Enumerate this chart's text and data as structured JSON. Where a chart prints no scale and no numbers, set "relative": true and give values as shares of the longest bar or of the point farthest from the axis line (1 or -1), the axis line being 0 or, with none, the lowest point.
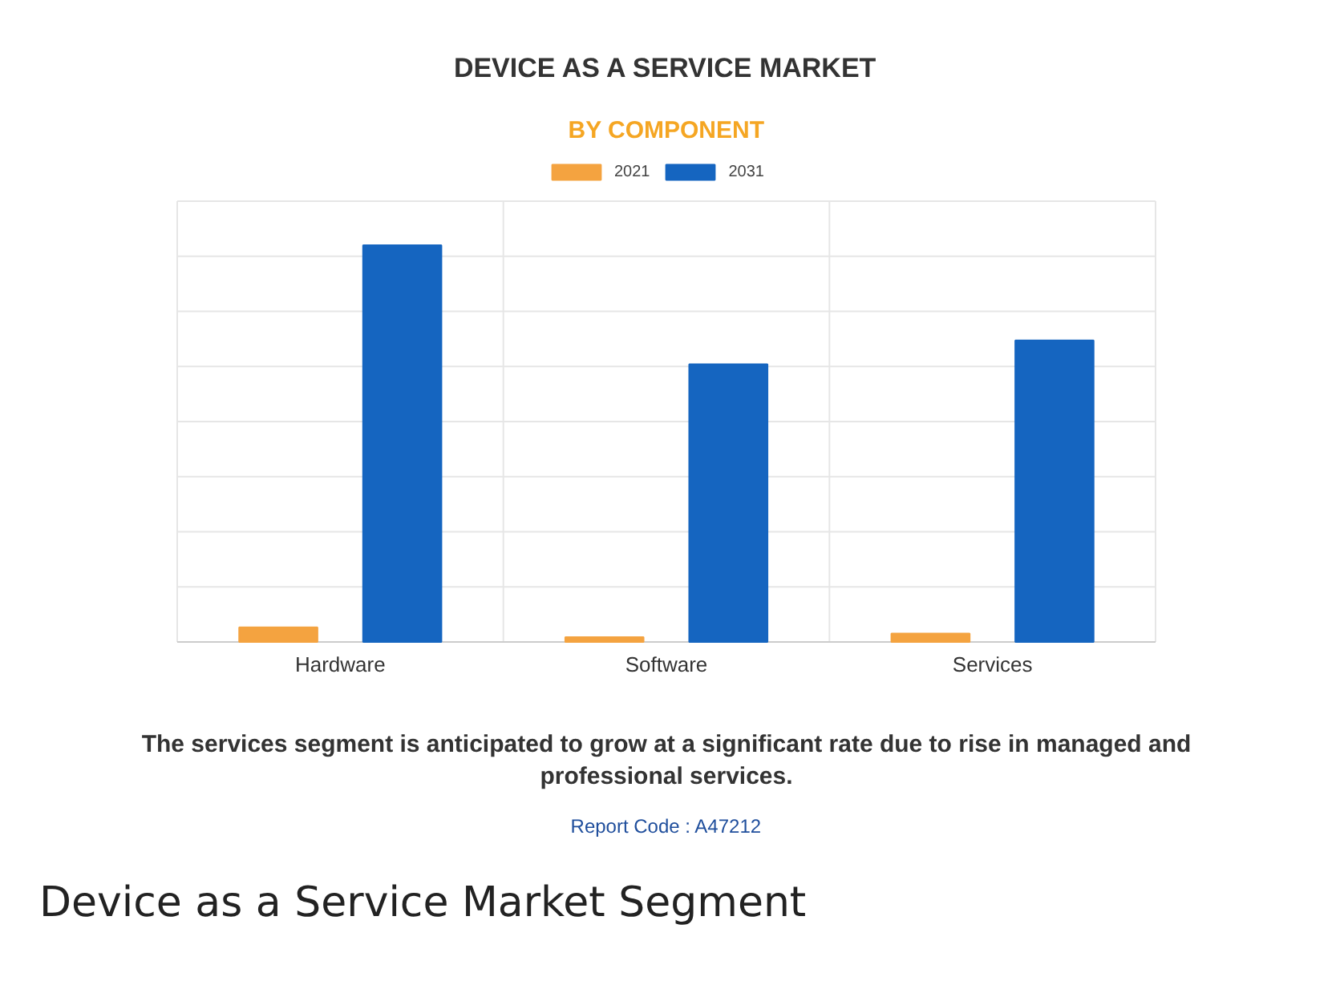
{
  "chart_data": {
    "type": "bar",
    "title": "DEVICE AS A SERVICE MARKET",
    "subtitle": "BY COMPONENT",
    "categories": [
      "Hardware",
      "Software",
      "Services"
    ],
    "series": [
      {
        "name": "2021",
        "color": "#f4a340",
        "values": [
          0.037,
          0.012,
          0.021
        ]
      },
      {
        "name": "2031",
        "color": "#1565c0",
        "values": [
          1,
          0.7,
          0.76
        ]
      }
    ],
    "relative": true,
    "grid": true,
    "legend": "top",
    "annotations": [
      "The services segment is anticipated to grow at a significant rate due to rise in managed and professional services.",
      "Report Code : A47212",
      "Device as a Service Market Segment"
    ]
  }
}
